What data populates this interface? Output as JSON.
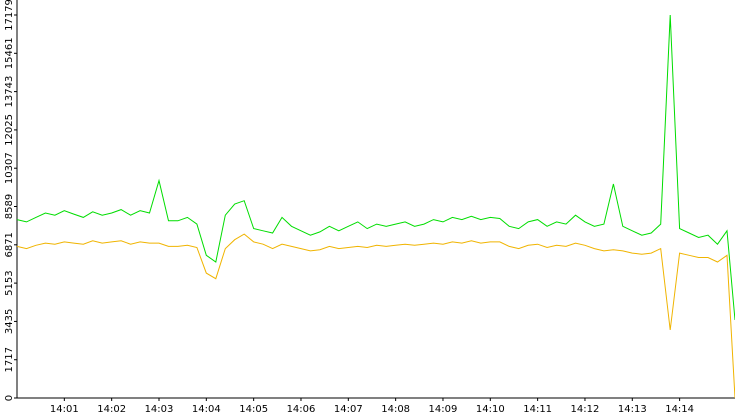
{
  "chart_data": {
    "type": "line",
    "x": [
      0,
      0.2,
      0.4,
      0.6,
      0.8,
      1,
      1.2,
      1.4,
      1.6,
      1.8,
      2,
      2.2,
      2.4,
      2.6,
      2.8,
      3,
      3.2,
      3.4,
      3.6,
      3.8,
      4,
      4.2,
      4.4,
      4.6,
      4.8,
      5,
      5.2,
      5.4,
      5.6,
      5.8,
      6,
      6.2,
      6.4,
      6.6,
      6.8,
      7,
      7.2,
      7.4,
      7.6,
      7.8,
      8,
      8.2,
      8.4,
      8.6,
      8.8,
      9,
      9.2,
      9.4,
      9.6,
      9.8,
      10,
      10.2,
      10.4,
      10.6,
      10.8,
      11,
      11.2,
      11.4,
      11.6,
      11.8,
      12,
      12.2,
      12.4,
      12.6,
      12.8,
      13,
      13.2,
      13.4,
      13.6,
      13.8,
      14,
      14.2,
      14.4,
      14.6,
      14.8,
      15,
      15.17
    ],
    "series": [
      {
        "color": "#00dd00",
        "values": [
          8000,
          7900,
          8100,
          8300,
          8200,
          8400,
          8250,
          8100,
          8350,
          8200,
          8300,
          8450,
          8200,
          8400,
          8300,
          9750,
          7950,
          7950,
          8100,
          7800,
          6400,
          6100,
          8200,
          8700,
          8850,
          7600,
          7500,
          7400,
          8100,
          7700,
          7500,
          7300,
          7450,
          7700,
          7500,
          7700,
          7900,
          7600,
          7800,
          7700,
          7800,
          7900,
          7700,
          7800,
          8000,
          7900,
          8100,
          8000,
          8150,
          8000,
          8100,
          8050,
          7700,
          7600,
          7900,
          8000,
          7700,
          7900,
          7800,
          8200,
          7900,
          7700,
          7800,
          9600,
          7700,
          7500,
          7300,
          7400,
          7800,
          17179,
          7600,
          7400,
          7200,
          7300,
          6900,
          7500,
          3500
        ]
      },
      {
        "color": "#f0b400",
        "values": [
          6800,
          6700,
          6850,
          6950,
          6900,
          7000,
          6950,
          6900,
          7050,
          6950,
          7000,
          7050,
          6900,
          7000,
          6950,
          6950,
          6800,
          6800,
          6850,
          6750,
          5600,
          5350,
          6700,
          7100,
          7350,
          7000,
          6900,
          6700,
          6900,
          6800,
          6700,
          6600,
          6650,
          6800,
          6700,
          6750,
          6800,
          6750,
          6850,
          6800,
          6850,
          6900,
          6850,
          6900,
          6950,
          6900,
          7000,
          6950,
          7050,
          6950,
          7000,
          7000,
          6800,
          6700,
          6850,
          6900,
          6750,
          6850,
          6800,
          6950,
          6850,
          6700,
          6600,
          6650,
          6600,
          6500,
          6450,
          6500,
          6700,
          3050,
          6500,
          6400,
          6300,
          6300,
          6100,
          6400,
          0
        ]
      }
    ],
    "xlim": [
      0,
      15.17
    ],
    "xticks": [
      {
        "value": 1,
        "label": "14:01"
      },
      {
        "value": 2,
        "label": "14:02"
      },
      {
        "value": 3,
        "label": "14:03"
      },
      {
        "value": 4,
        "label": "14:04"
      },
      {
        "value": 5,
        "label": "14:05"
      },
      {
        "value": 6,
        "label": "14:06"
      },
      {
        "value": 7,
        "label": "14:07"
      },
      {
        "value": 8,
        "label": "14:08"
      },
      {
        "value": 9,
        "label": "14:09"
      },
      {
        "value": 10,
        "label": "14:10"
      },
      {
        "value": 11,
        "label": "14:11"
      },
      {
        "value": 12,
        "label": "14:12"
      },
      {
        "value": 13,
        "label": "14:13"
      },
      {
        "value": 14,
        "label": "14:14"
      }
    ],
    "ylim": [
      0,
      17179
    ],
    "yticks": [
      0,
      1717,
      3435,
      5153,
      6871,
      8589,
      10307,
      12025,
      13743,
      15461,
      17179
    ]
  }
}
